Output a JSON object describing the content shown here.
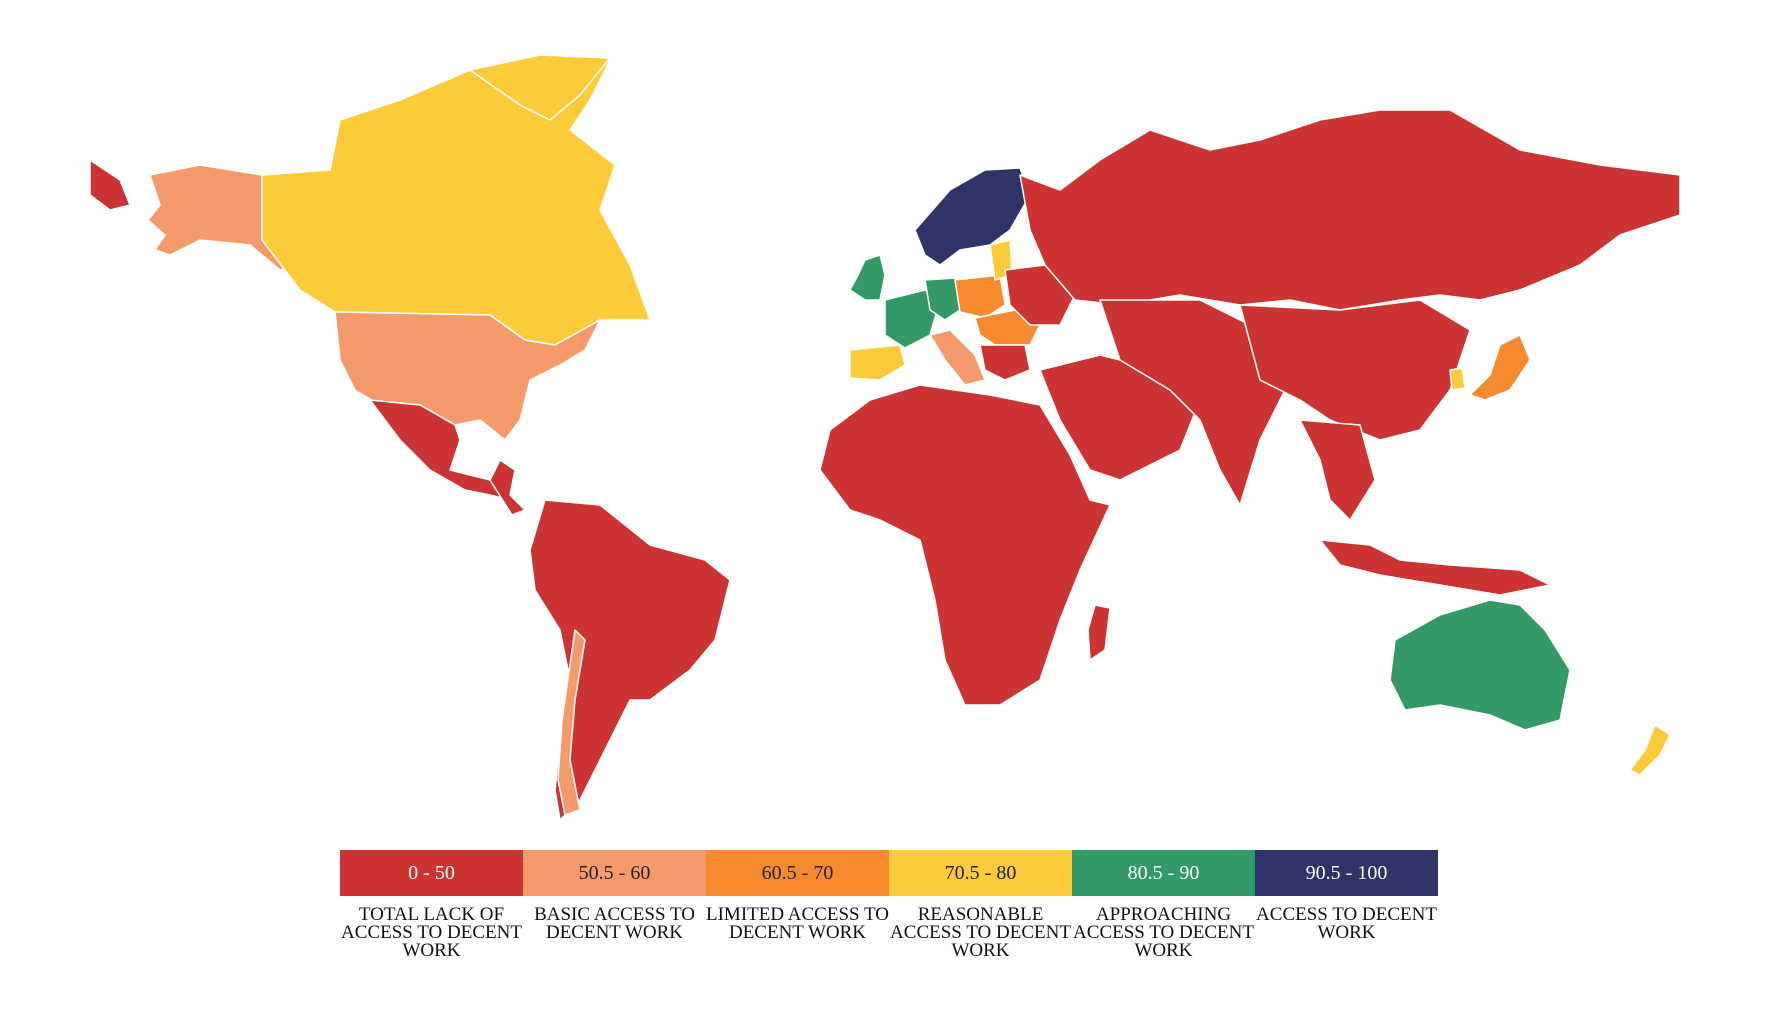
{
  "colors": {
    "total_lack": "#cc3333",
    "basic": "#f59a6a",
    "limited": "#f58a2f",
    "reasonable": "#fdcb3a",
    "approaching": "#339966",
    "access": "#2e3468"
  },
  "legend": [
    {
      "range": "0 - 50",
      "label": "TOTAL LACK OF ACCESS TO DECENT WORK",
      "color": "#cc3333",
      "text_color": "#ffffff"
    },
    {
      "range": "50.5 - 60",
      "label": "BASIC ACCESS TO DECENT WORK",
      "color": "#f59a6a",
      "text_color": "#222222"
    },
    {
      "range": "60.5 - 70",
      "label": "LIMITED ACCESS TO DECENT WORK",
      "color": "#f58a2f",
      "text_color": "#222222"
    },
    {
      "range": "70.5 - 80",
      "label": "REASONABLE ACCESS TO DECENT WORK",
      "color": "#fdcb3a",
      "text_color": "#222222"
    },
    {
      "range": "80.5 - 90",
      "label": "APPROACHING ACCESS TO DECENT WORK",
      "color": "#339966",
      "text_color": "#ffffff"
    },
    {
      "range": "90.5 - 100",
      "label": "ACCESS TO DECENT WORK",
      "color": "#2e3468",
      "text_color": "#ffffff"
    }
  ]
}
